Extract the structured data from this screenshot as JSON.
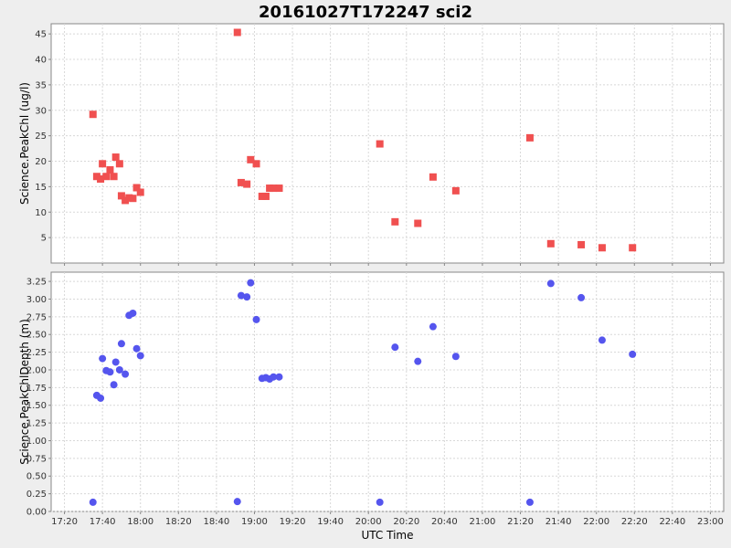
{
  "chart_data": {
    "type": "scatter",
    "title": "20161027T172247 sci2",
    "xlabel": "UTC Time",
    "x_ticks": [
      "17:20",
      "17:40",
      "18:00",
      "18:20",
      "18:40",
      "19:00",
      "19:20",
      "19:40",
      "20:00",
      "20:20",
      "20:40",
      "21:00",
      "21:20",
      "21:40",
      "22:00",
      "22:20",
      "22:40",
      "23:00"
    ],
    "xlim": [
      "17:13",
      "23:07"
    ],
    "grid": true,
    "legend": "none",
    "panels": [
      {
        "ylabel": "Science.PeakChl (ug/l)",
        "ylim": [
          0,
          47
        ],
        "y_ticks": [
          "5",
          "10",
          "15",
          "20",
          "25",
          "30",
          "35",
          "40",
          "45"
        ],
        "marker": "square",
        "color": "#f05050",
        "points": [
          {
            "x": "17:35",
            "y": 29.2
          },
          {
            "x": "17:37",
            "y": 17.0
          },
          {
            "x": "17:39",
            "y": 16.5
          },
          {
            "x": "17:40",
            "y": 19.5
          },
          {
            "x": "17:42",
            "y": 17.0
          },
          {
            "x": "17:44",
            "y": 18.3
          },
          {
            "x": "17:46",
            "y": 17.0
          },
          {
            "x": "17:47",
            "y": 20.8
          },
          {
            "x": "17:49",
            "y": 19.5
          },
          {
            "x": "17:50",
            "y": 13.2
          },
          {
            "x": "17:52",
            "y": 12.3
          },
          {
            "x": "17:54",
            "y": 12.8
          },
          {
            "x": "17:56",
            "y": 12.7
          },
          {
            "x": "17:58",
            "y": 14.8
          },
          {
            "x": "18:00",
            "y": 13.9
          },
          {
            "x": "18:51",
            "y": 45.3
          },
          {
            "x": "18:53",
            "y": 15.8
          },
          {
            "x": "18:56",
            "y": 15.5
          },
          {
            "x": "18:58",
            "y": 20.3
          },
          {
            "x": "19:01",
            "y": 19.5
          },
          {
            "x": "19:04",
            "y": 13.1
          },
          {
            "x": "19:06",
            "y": 13.1
          },
          {
            "x": "19:08",
            "y": 14.7
          },
          {
            "x": "19:10",
            "y": 14.7
          },
          {
            "x": "19:13",
            "y": 14.7
          },
          {
            "x": "20:06",
            "y": 23.4
          },
          {
            "x": "20:14",
            "y": 8.1
          },
          {
            "x": "20:26",
            "y": 7.8
          },
          {
            "x": "20:34",
            "y": 16.9
          },
          {
            "x": "20:46",
            "y": 14.2
          },
          {
            "x": "21:25",
            "y": 24.6
          },
          {
            "x": "21:36",
            "y": 3.8
          },
          {
            "x": "21:52",
            "y": 3.6
          },
          {
            "x": "22:03",
            "y": 3.0
          },
          {
            "x": "22:19",
            "y": 3.0
          }
        ]
      },
      {
        "ylabel": "Science.PeakChlDepth (m)",
        "ylim": [
          0,
          3.38
        ],
        "y_ticks": [
          "0.00",
          "0.25",
          "0.50",
          "0.75",
          "1.00",
          "1.25",
          "1.50",
          "1.75",
          "2.00",
          "2.25",
          "2.50",
          "2.75",
          "3.00",
          "3.25"
        ],
        "marker": "circle",
        "color": "#5555ee",
        "points": [
          {
            "x": "17:35",
            "y": 0.13
          },
          {
            "x": "17:37",
            "y": 1.64
          },
          {
            "x": "17:39",
            "y": 1.6
          },
          {
            "x": "17:40",
            "y": 2.16
          },
          {
            "x": "17:42",
            "y": 1.99
          },
          {
            "x": "17:44",
            "y": 1.97
          },
          {
            "x": "17:46",
            "y": 1.79
          },
          {
            "x": "17:47",
            "y": 2.11
          },
          {
            "x": "17:49",
            "y": 2.0
          },
          {
            "x": "17:50",
            "y": 2.37
          },
          {
            "x": "17:52",
            "y": 1.94
          },
          {
            "x": "17:54",
            "y": 2.77
          },
          {
            "x": "17:56",
            "y": 2.8
          },
          {
            "x": "17:58",
            "y": 2.3
          },
          {
            "x": "18:00",
            "y": 2.2
          },
          {
            "x": "18:51",
            "y": 0.14
          },
          {
            "x": "18:53",
            "y": 3.05
          },
          {
            "x": "18:56",
            "y": 3.03
          },
          {
            "x": "18:58",
            "y": 3.23
          },
          {
            "x": "19:01",
            "y": 2.71
          },
          {
            "x": "19:04",
            "y": 1.88
          },
          {
            "x": "19:06",
            "y": 1.89
          },
          {
            "x": "19:08",
            "y": 1.87
          },
          {
            "x": "19:10",
            "y": 1.9
          },
          {
            "x": "19:13",
            "y": 1.9
          },
          {
            "x": "20:06",
            "y": 0.13
          },
          {
            "x": "20:14",
            "y": 2.32
          },
          {
            "x": "20:26",
            "y": 2.12
          },
          {
            "x": "20:34",
            "y": 2.61
          },
          {
            "x": "20:46",
            "y": 2.19
          },
          {
            "x": "21:25",
            "y": 0.13
          },
          {
            "x": "21:36",
            "y": 3.22
          },
          {
            "x": "21:52",
            "y": 3.02
          },
          {
            "x": "22:03",
            "y": 2.42
          },
          {
            "x": "22:19",
            "y": 2.22
          }
        ]
      }
    ]
  }
}
